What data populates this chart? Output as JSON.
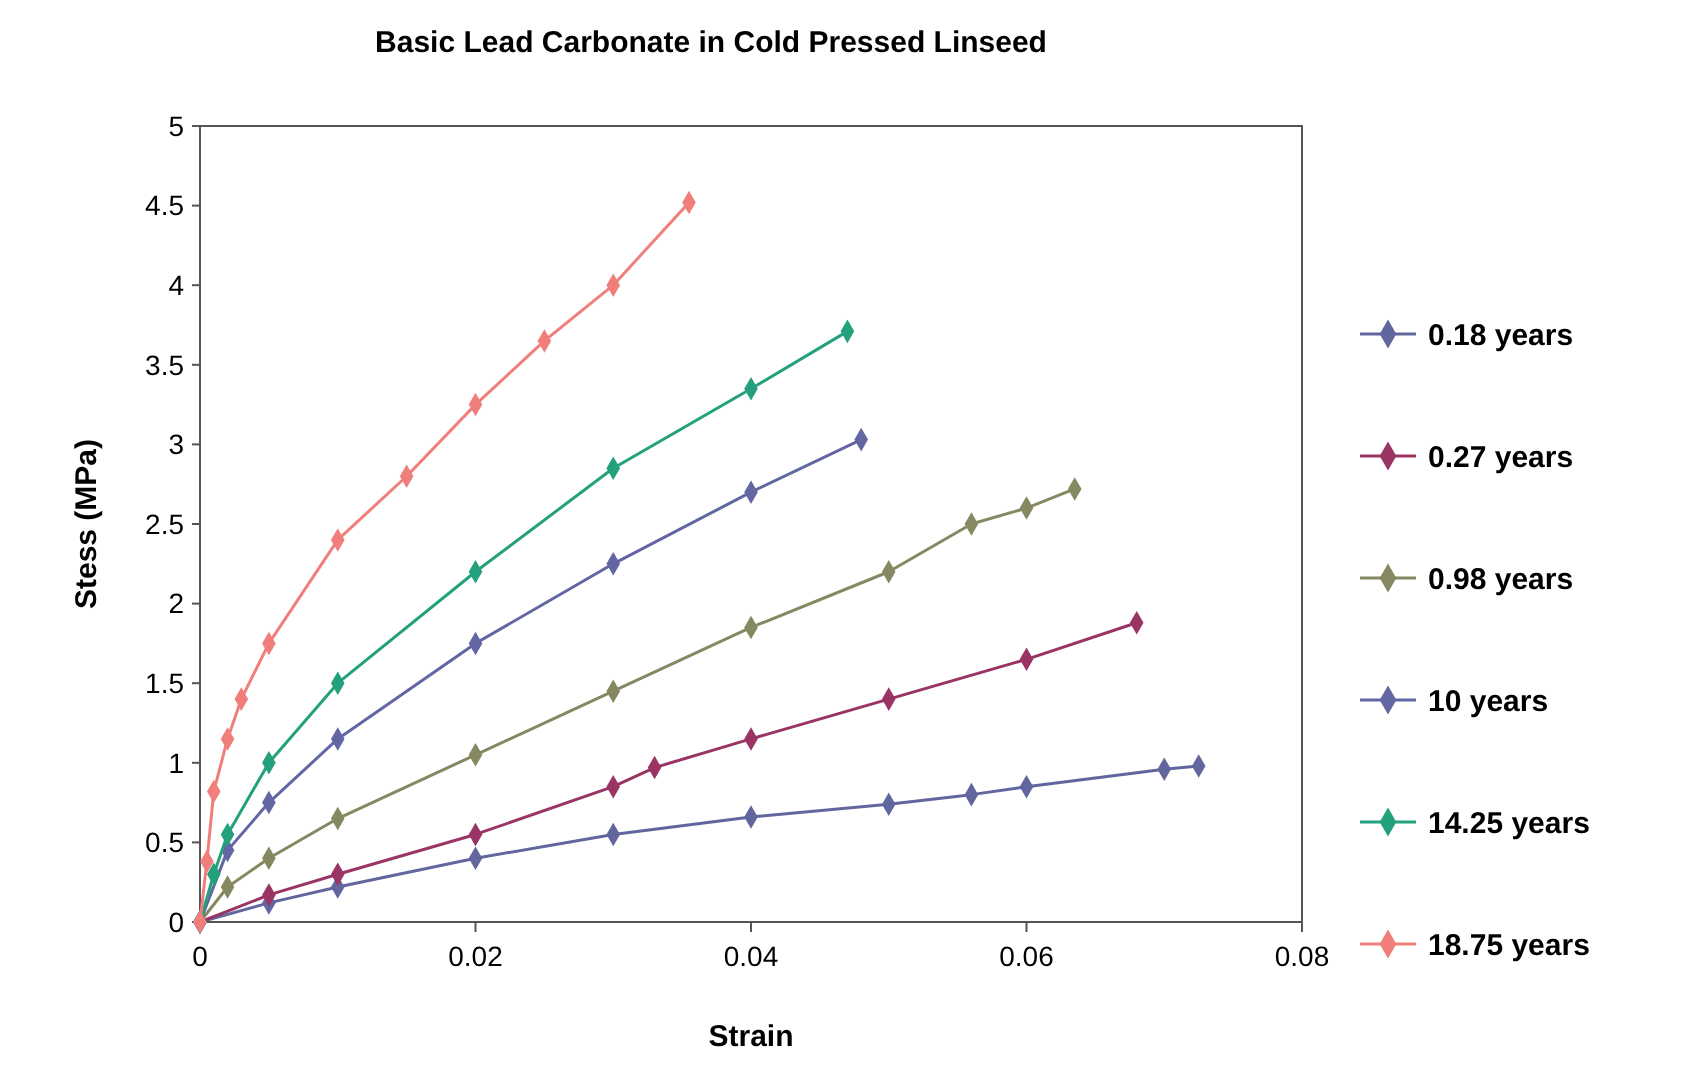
{
  "chart_data": {
    "type": "line",
    "title": "Basic Lead Carbonate in Cold Pressed Linseed",
    "xlabel": "Strain",
    "ylabel": "Stess (MPa)",
    "xlim": [
      0,
      0.08
    ],
    "xticks": [
      0,
      0.02,
      0.04,
      0.06,
      0.08
    ],
    "ylim": [
      0,
      5
    ],
    "yticks": [
      0,
      0.5,
      1,
      1.5,
      2,
      2.5,
      3,
      3.5,
      4,
      4.5,
      5
    ],
    "grid": false,
    "legend": "right",
    "marker": "diamond",
    "line_style": "solid",
    "series": [
      {
        "name": "0.18 years",
        "color": "#62669f",
        "x": [
          0,
          0.005,
          0.01,
          0.02,
          0.03,
          0.04,
          0.05,
          0.056,
          0.06,
          0.07,
          0.0725
        ],
        "values": [
          0,
          0.12,
          0.22,
          0.4,
          0.55,
          0.66,
          0.74,
          0.8,
          0.85,
          0.96,
          0.98
        ]
      },
      {
        "name": "0.27 years",
        "color": "#993465",
        "x": [
          0,
          0.005,
          0.01,
          0.02,
          0.03,
          0.033,
          0.04,
          0.05,
          0.06,
          0.068
        ],
        "values": [
          0,
          0.17,
          0.3,
          0.55,
          0.85,
          0.97,
          1.15,
          1.4,
          1.65,
          1.88
        ]
      },
      {
        "name": "0.98 years",
        "color": "#858860",
        "x": [
          0,
          0.002,
          0.005,
          0.01,
          0.02,
          0.03,
          0.04,
          0.05,
          0.056,
          0.06,
          0.0635
        ],
        "values": [
          0,
          0.22,
          0.4,
          0.65,
          1.05,
          1.45,
          1.85,
          2.2,
          2.5,
          2.6,
          2.72
        ]
      },
      {
        "name": "10 years",
        "color": "#6266a3",
        "x": [
          0,
          0.002,
          0.005,
          0.01,
          0.02,
          0.03,
          0.04,
          0.048
        ],
        "values": [
          0,
          0.45,
          0.75,
          1.15,
          1.75,
          2.25,
          2.7,
          3.03
        ]
      },
      {
        "name": "14.25 years",
        "color": "#23a07c",
        "x": [
          0,
          0.001,
          0.002,
          0.005,
          0.01,
          0.02,
          0.03,
          0.04,
          0.047
        ],
        "values": [
          0,
          0.3,
          0.55,
          1.0,
          1.5,
          2.2,
          2.85,
          3.35,
          3.71
        ]
      },
      {
        "name": "18.75 years",
        "color": "#f07e7b",
        "x": [
          0,
          0.0005,
          0.001,
          0.002,
          0.003,
          0.005,
          0.01,
          0.015,
          0.02,
          0.025,
          0.03,
          0.0355
        ],
        "values": [
          0,
          0.38,
          0.82,
          1.15,
          1.4,
          1.75,
          2.4,
          2.8,
          3.25,
          3.65,
          4.0,
          4.52
        ]
      }
    ]
  }
}
